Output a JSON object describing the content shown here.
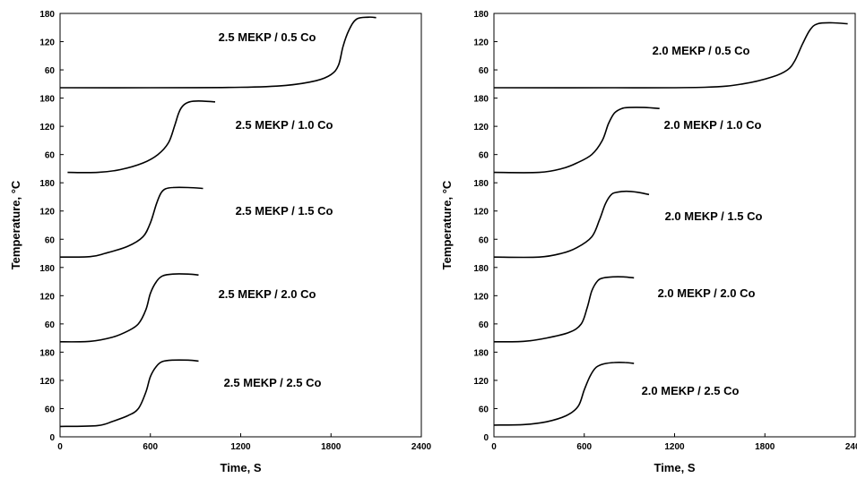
{
  "chart_data": [
    {
      "type": "line",
      "xlabel": "Time, S",
      "ylabel": "Temperature, °C",
      "xlim": [
        0,
        2400
      ],
      "xticks": [
        "0",
        "600",
        "1200",
        "1800",
        "2400"
      ],
      "panels": [
        {
          "label": "2.5 MEKP / 0.5 Co",
          "ylim": [
            0,
            180
          ],
          "yticks": [
            "60",
            "120",
            "180"
          ],
          "x": [
            0,
            600,
            1200,
            1500,
            1700,
            1800,
            1850,
            1880,
            1920,
            1970,
            2050,
            2100
          ],
          "y": [
            22,
            22,
            23,
            27,
            37,
            50,
            70,
            110,
            145,
            168,
            172,
            171
          ]
        },
        {
          "label": "2.5 MEKP / 1.0 Co",
          "ylim": [
            0,
            180
          ],
          "yticks": [
            "60",
            "120",
            "180"
          ],
          "x": [
            50,
            250,
            400,
            550,
            650,
            720,
            760,
            790,
            820,
            860,
            920,
            1030
          ],
          "y": [
            22,
            22,
            28,
            42,
            60,
            85,
            120,
            150,
            165,
            172,
            174,
            172
          ]
        },
        {
          "label": "2.5 MEKP / 1.5 Co",
          "ylim": [
            0,
            180
          ],
          "yticks": [
            "60",
            "120",
            "180"
          ],
          "x": [
            0,
            200,
            300,
            450,
            550,
            600,
            640,
            670,
            700,
            750,
            850,
            950
          ],
          "y": [
            22,
            23,
            30,
            45,
            65,
            95,
            135,
            158,
            167,
            170,
            170,
            168
          ]
        },
        {
          "label": "2.5 MEKP / 2.0 Co",
          "ylim": [
            0,
            180
          ],
          "yticks": [
            "60",
            "120",
            "180"
          ],
          "x": [
            0,
            200,
            350,
            450,
            520,
            570,
            600,
            640,
            680,
            750,
            850,
            920
          ],
          "y": [
            22,
            23,
            32,
            45,
            60,
            90,
            125,
            150,
            162,
            166,
            166,
            164
          ]
        },
        {
          "label": "2.5 MEKP / 2.5 Co",
          "ylim": [
            0,
            180
          ],
          "yticks": [
            "0",
            "60",
            "120",
            "180"
          ],
          "x": [
            0,
            250,
            350,
            450,
            520,
            570,
            600,
            640,
            680,
            750,
            850,
            920
          ],
          "y": [
            22,
            24,
            33,
            45,
            60,
            95,
            128,
            150,
            160,
            163,
            163,
            161
          ]
        }
      ]
    },
    {
      "type": "line",
      "xlabel": "Time, S",
      "ylabel": "Temperature, °C",
      "xlim": [
        0,
        2400
      ],
      "xticks": [
        "0",
        "600",
        "1200",
        "1800",
        "2400"
      ],
      "panels": [
        {
          "label": "2.0 MEKP / 0.5 Co",
          "ylim": [
            0,
            180
          ],
          "yticks": [
            "60",
            "120",
            "180"
          ],
          "x": [
            0,
            800,
            1400,
            1650,
            1850,
            1950,
            2000,
            2050,
            2100,
            2150,
            2250,
            2350
          ],
          "y": [
            22,
            22,
            23,
            30,
            45,
            60,
            80,
            115,
            145,
            158,
            160,
            158
          ]
        },
        {
          "label": "2.0 MEKP / 1.0 Co",
          "ylim": [
            0,
            180
          ],
          "yticks": [
            "60",
            "120",
            "180"
          ],
          "x": [
            0,
            300,
            450,
            550,
            650,
            720,
            760,
            800,
            850,
            900,
            1000,
            1100
          ],
          "y": [
            22,
            22,
            30,
            42,
            60,
            90,
            125,
            148,
            158,
            160,
            160,
            158
          ]
        },
        {
          "label": "2.0 MEKP / 1.5 Co",
          "ylim": [
            0,
            180
          ],
          "yticks": [
            "60",
            "120",
            "180"
          ],
          "x": [
            0,
            300,
            450,
            550,
            650,
            700,
            740,
            780,
            820,
            880,
            950,
            1030
          ],
          "y": [
            22,
            22,
            30,
            42,
            65,
            100,
            135,
            155,
            160,
            162,
            160,
            155
          ]
        },
        {
          "label": "2.0 MEKP / 2.0 Co",
          "ylim": [
            0,
            180
          ],
          "yticks": [
            "60",
            "120",
            "180"
          ],
          "x": [
            0,
            200,
            350,
            500,
            580,
            620,
            650,
            690,
            730,
            790,
            860,
            930
          ],
          "y": [
            22,
            23,
            30,
            42,
            60,
            95,
            130,
            152,
            158,
            160,
            160,
            158
          ]
        },
        {
          "label": "2.0 MEKP / 2.5 Co",
          "ylim": [
            0,
            180
          ],
          "yticks": [
            "0",
            "60",
            "120",
            "180"
          ],
          "x": [
            0,
            200,
            350,
            480,
            560,
            600,
            640,
            680,
            730,
            800,
            870,
            930
          ],
          "y": [
            25,
            26,
            32,
            45,
            65,
            100,
            130,
            148,
            155,
            158,
            158,
            156
          ]
        }
      ]
    }
  ]
}
